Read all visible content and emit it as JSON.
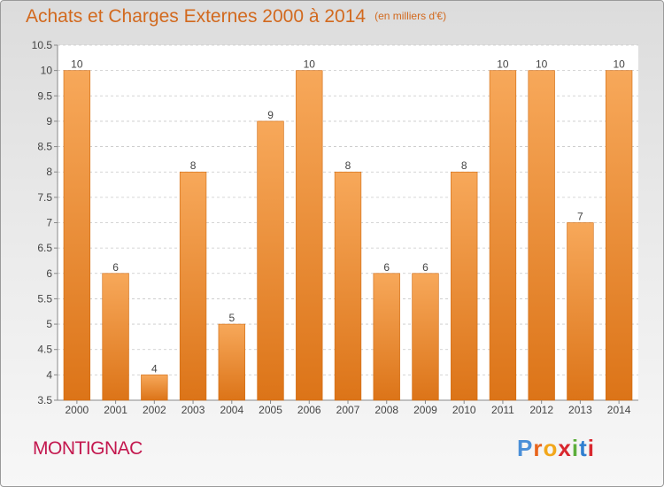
{
  "title": "Achats et Charges Externes 2000 à 2014",
  "unit": "(en milliers d'€)",
  "city": "MONTIGNAC",
  "brand": {
    "letters": [
      "P",
      "r",
      "o",
      "x",
      "i",
      "t",
      "i"
    ],
    "colors": [
      "#4a8fd8",
      "#e8641b",
      "#f2a71b",
      "#d9282f",
      "#5cae3b",
      "#2f7fd0",
      "#d9282f"
    ]
  },
  "colors": {
    "bar_top": "#f7a85a",
    "bar_bottom": "#dc7418",
    "title": "#d2691e",
    "city": "#c3174e"
  },
  "chart_data": {
    "type": "bar",
    "title": "Achats et Charges Externes 2000 à 2014",
    "unit": "(en milliers d'€)",
    "categories": [
      "2000",
      "2001",
      "2002",
      "2003",
      "2004",
      "2005",
      "2006",
      "2007",
      "2008",
      "2009",
      "2010",
      "2011",
      "2012",
      "2013",
      "2014"
    ],
    "values": [
      10,
      6,
      4,
      8,
      5,
      9,
      10,
      8,
      6,
      6,
      8,
      10,
      10,
      7,
      10
    ],
    "ylim": [
      3.5,
      10.5
    ],
    "yticks": [
      "3.5",
      "4",
      "4.5",
      "5",
      "5.5",
      "6",
      "6.5",
      "7",
      "7.5",
      "8",
      "8.5",
      "9",
      "9.5",
      "10",
      "10.5"
    ],
    "grid": true,
    "legend": "none"
  }
}
